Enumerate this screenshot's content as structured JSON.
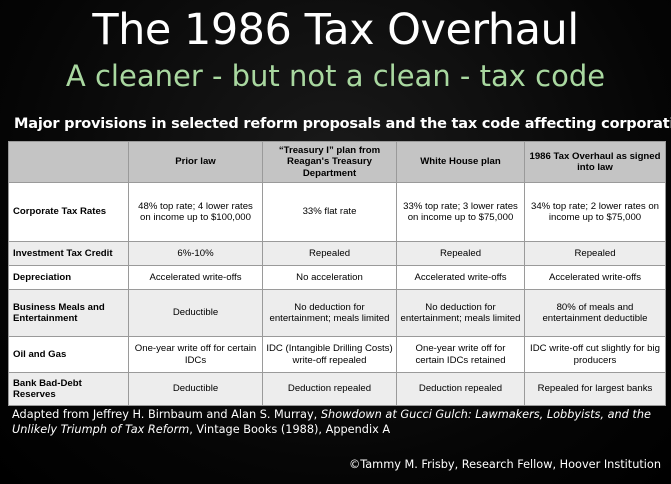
{
  "slide": {
    "title": "The 1986 Tax Overhaul",
    "subtitle": "A cleaner - but not a clean - tax code",
    "table_caption": "Major provisions in selected reform proposals and the tax code affecting corporations",
    "colors": {
      "subtitle": "#a9d8a0",
      "header_bg": "#c4c4c4",
      "row_alt_bg": "#ededed"
    }
  },
  "table": {
    "headers": [
      "",
      "Prior law",
      "“Treasury I” plan from Reagan's Treasury Department",
      "White House plan",
      "1986 Tax Overhaul as signed into law"
    ],
    "rows": [
      [
        "Corporate Tax Rates",
        "48% top rate; 4 lower rates on income up to $100,000",
        "33% flat rate",
        "33% top rate; 3 lower rates on income up to $75,000",
        "34% top rate; 2 lower rates on income up to $75,000"
      ],
      [
        "Investment Tax Credit",
        "6%-10%",
        "Repealed",
        "Repealed",
        "Repealed"
      ],
      [
        "Depreciation",
        "Accelerated write-offs",
        "No acceleration",
        "Accelerated write-offs",
        "Accelerated write-offs"
      ],
      [
        "Business Meals and Entertainment",
        "Deductible",
        "No deduction for entertainment; meals limited",
        "No deduction for entertainment; meals limited",
        "80% of meals and entertainment deductible"
      ],
      [
        "Oil and Gas",
        "One-year write off for certain IDCs",
        "IDC (Intangible Drilling Costs) write-off repealed",
        "One-year write off for certain IDCs retained",
        "IDC write-off cut slightly for big producers"
      ],
      [
        "Bank Bad-Debt Reserves",
        "Deductible",
        "Deduction repealed",
        "Deduction repealed",
        "Repealed for largest banks"
      ]
    ]
  },
  "footnote": {
    "prefix": "Adapted from Jeffrey H. Birnbaum and Alan S. Murray, ",
    "book_title": "Showdown at Gucci Gulch: Lawmakers, Lobbyists, and the Unlikely Triumph of Tax Reform",
    "suffix": ", Vintage Books (1988), Appendix A"
  },
  "credit": "©Tammy M. Frisby, Research Fellow, Hoover Institution"
}
